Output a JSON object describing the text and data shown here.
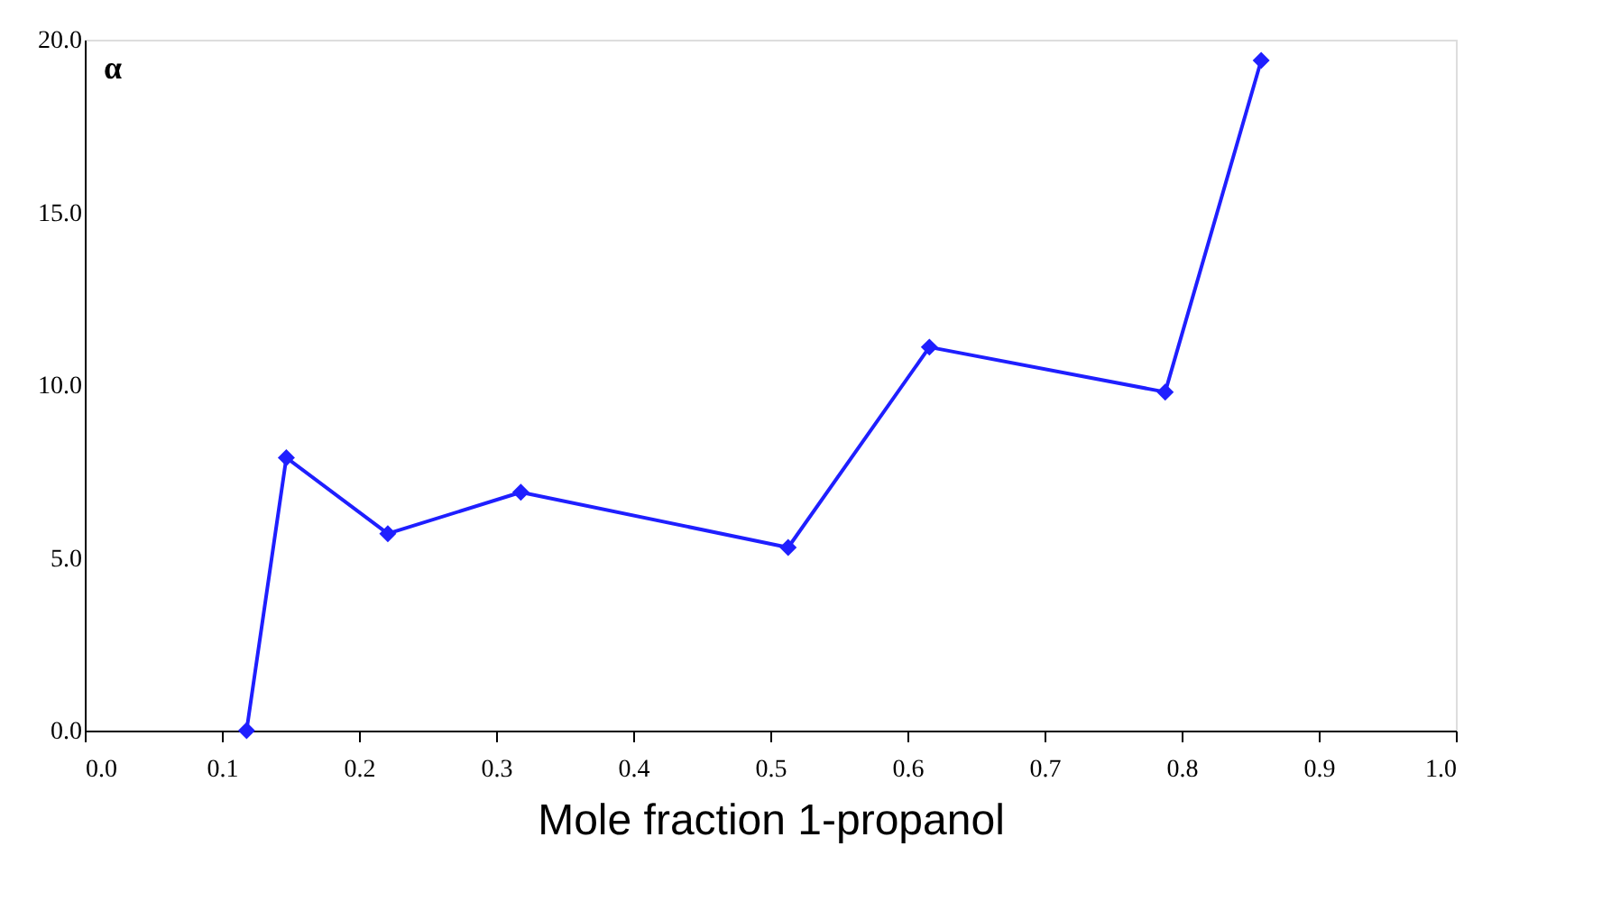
{
  "chart_data": {
    "type": "line",
    "xlabel": "Mole fraction 1-propanol",
    "ylabel": "α",
    "x": [
      0.118,
      0.147,
      0.221,
      0.318,
      0.513,
      0.616,
      0.788,
      0.858
    ],
    "series": [
      {
        "color": "#1f1fff",
        "values": [
          0,
          7.9,
          5.7,
          6.9,
          5.3,
          11.1,
          9.8,
          19.4
        ]
      }
    ],
    "xlim": [
      0,
      1
    ],
    "ylim": [
      0,
      20
    ],
    "xticks": [
      {
        "value": 0,
        "label": "0.0"
      },
      {
        "value": 0.1,
        "label": "0.1"
      },
      {
        "value": 0.2,
        "label": "0.2"
      },
      {
        "value": 0.3,
        "label": "0.3"
      },
      {
        "value": 0.4,
        "label": "0.4"
      },
      {
        "value": 0.5,
        "label": "0.5"
      },
      {
        "value": 0.6,
        "label": "0.6"
      },
      {
        "value": 0.7,
        "label": "0.7"
      },
      {
        "value": 0.8,
        "label": "0.8"
      },
      {
        "value": 0.9,
        "label": "0.9"
      },
      {
        "value": 1,
        "label": "1.0"
      }
    ],
    "yticks": [
      {
        "value": 0,
        "label": "0.0"
      },
      {
        "value": 5,
        "label": "5.0"
      },
      {
        "value": 10,
        "label": "10.0"
      },
      {
        "value": 15,
        "label": "15.0"
      },
      {
        "value": 20,
        "label": "20.0"
      }
    ],
    "grid": false,
    "legend": false,
    "marker": "diamond",
    "line_style": "solid"
  }
}
